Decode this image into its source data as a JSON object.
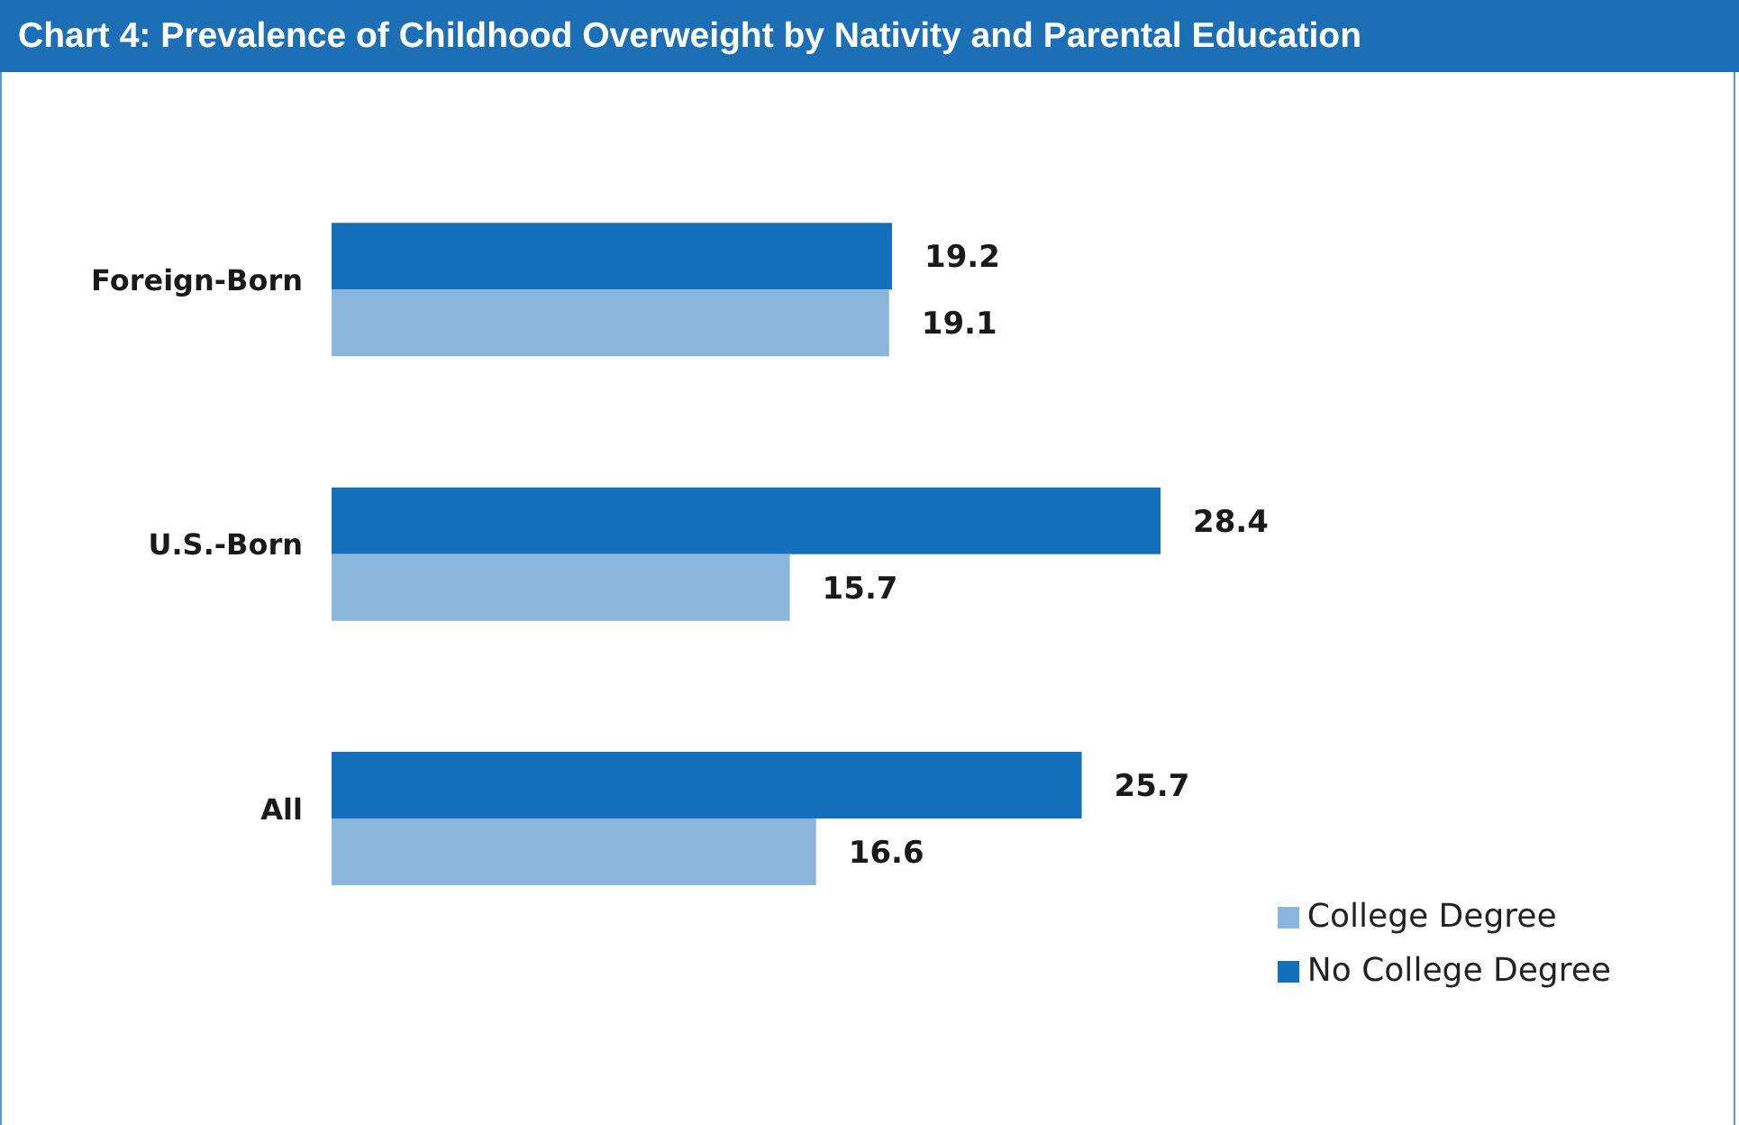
{
  "chart_data": {
    "type": "bar",
    "orientation": "horizontal",
    "title": "Chart 4: Prevalence of Childhood Overweight by Nativity and Parental Education",
    "categories": [
      "Foreign-Born",
      "U.S.-Born",
      "All"
    ],
    "series": [
      {
        "name": "No College Degree",
        "color": "#1470ba",
        "values": [
          19.2,
          28.4,
          25.7
        ]
      },
      {
        "name": "College Degree",
        "color": "#8ab6dc",
        "values": [
          19.1,
          15.7,
          16.6
        ]
      }
    ],
    "data_labels": true,
    "legend": "bottom right",
    "tick_labels": "y"
  }
}
